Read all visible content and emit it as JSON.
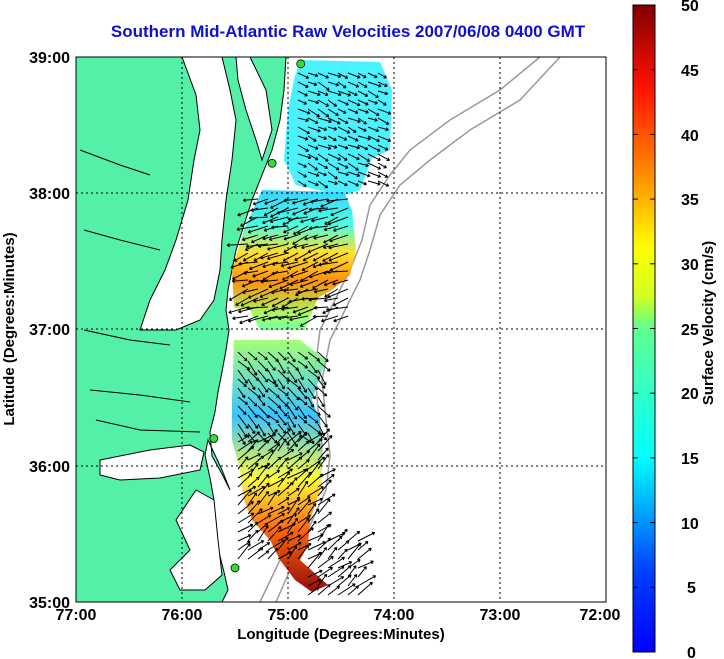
{
  "title": "Southern Mid-Atlantic Raw Velocities 2007/06/08 0400 GMT",
  "xlabel": "Longitude (Degrees:Minutes)",
  "ylabel": "Latitude (Degrees:Minutes)",
  "x_ticks": [
    "77:00",
    "76:00",
    "75:00",
    "74:00",
    "73:00",
    "72:00"
  ],
  "y_ticks": [
    "39:00",
    "38:00",
    "37:00",
    "36:00",
    "35:00"
  ],
  "colorbar": {
    "label": "Surface Velocity (cm/s)",
    "ticks": [
      "50",
      "45",
      "40",
      "35",
      "30",
      "25",
      "20",
      "15",
      "10",
      "5",
      "0"
    ],
    "range": [
      0,
      50
    ],
    "colormap": "jet"
  },
  "colors": {
    "land": "#55f0a8",
    "title": "#1010d0",
    "station": "#30e030"
  },
  "map": {
    "lon_range": [
      -77,
      -72
    ],
    "lat_range": [
      35,
      39
    ],
    "grid": "dotted",
    "stations": [
      {
        "lon": -74.88,
        "lat": 38.95
      },
      {
        "lon": -75.15,
        "lat": 38.22
      },
      {
        "lon": -75.7,
        "lat": 36.2
      },
      {
        "lon": -75.5,
        "lat": 35.25
      }
    ]
  }
}
